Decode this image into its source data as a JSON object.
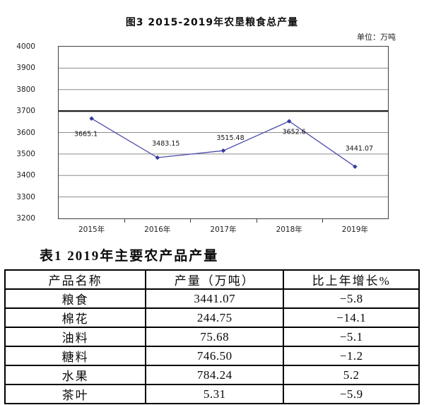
{
  "chart_data": [
    {
      "type": "line",
      "title": "图3  2015-2019年农垦粮食总产量",
      "unit": "单位：万吨",
      "categories": [
        "2015年",
        "2016年",
        "2017年",
        "2018年",
        "2019年"
      ],
      "values": [
        3665.1,
        3483.15,
        3515.48,
        3652.6,
        3441.07
      ],
      "point_labels": [
        "3665.1",
        "3483.15",
        "3515.48",
        "3652.6",
        "3441.07"
      ],
      "xlabel": "",
      "ylabel": "",
      "ylim": [
        3200,
        4000
      ],
      "ytick_interval": 100,
      "ytick_labels": [
        "4000",
        "3900",
        "3800",
        "3700",
        "3600",
        "3500",
        "3400",
        "3300",
        "3200"
      ],
      "grid": true,
      "emphasized_gridline_value": 3700,
      "legend_position": "none",
      "line_color": "#4a4aac",
      "marker_color": "#38389c",
      "gridline_color": "#8c8c8c",
      "emphasized_gridline_color": "#1c1c1c"
    },
    {
      "type": "table",
      "caption": "表1  2019年主要农产品产量",
      "columns": [
        "产品名称",
        "产量（万吨）",
        "比上年增长%"
      ],
      "rows": [
        [
          "粮食",
          "3441.07",
          "−5.8"
        ],
        [
          "棉花",
          "244.75",
          "−14.1"
        ],
        [
          "油料",
          "75.68",
          "−5.1"
        ],
        [
          "糖料",
          "746.50",
          "−1.2"
        ],
        [
          "水果",
          "784.24",
          "5.2"
        ],
        [
          "茶叶",
          "5.31",
          "−5.9"
        ]
      ]
    }
  ]
}
